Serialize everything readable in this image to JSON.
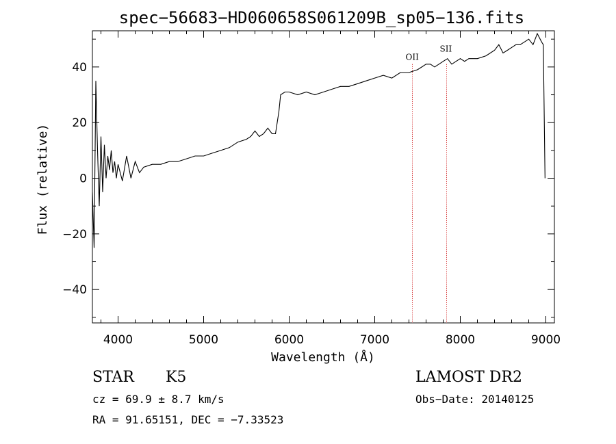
{
  "chart_data": {
    "type": "line",
    "title": "spec−56683−HD060658S061209B_sp05−136.fits",
    "xlabel": "Wavelength (Å)",
    "ylabel": "Flux (relative)",
    "xlim": [
      3700,
      9100
    ],
    "ylim": [
      -52,
      53
    ],
    "xticks": [
      4000,
      5000,
      6000,
      7000,
      8000,
      9000
    ],
    "yticks": [
      -40,
      -20,
      0,
      20,
      40
    ],
    "xtick_labels": [
      "4000",
      "5000",
      "6000",
      "7000",
      "8000",
      "9000"
    ],
    "ytick_labels": [
      "−40",
      "−20",
      "0",
      "20",
      "40"
    ],
    "series": [
      {
        "x": [
          3700,
          3720,
          3740,
          3760,
          3780,
          3800,
          3820,
          3840,
          3860,
          3880,
          3900,
          3920,
          3940,
          3960,
          3980,
          4000,
          4050,
          4100,
          4150,
          4200,
          4250,
          4300,
          4400,
          4500,
          4600,
          4700,
          4800,
          4900,
          5000,
          5100,
          5200,
          5300,
          5400,
          5500,
          5550,
          5600,
          5650,
          5700,
          5750,
          5800,
          5840,
          5860,
          5880,
          5900,
          5950,
          6000,
          6100,
          6200,
          6300,
          6400,
          6500,
          6600,
          6700,
          6800,
          6900,
          7000,
          7100,
          7200,
          7300,
          7400,
          7500,
          7550,
          7600,
          7650,
          7700,
          7750,
          7800,
          7850,
          7900,
          7950,
          8000,
          8050,
          8100,
          8200,
          8300,
          8350,
          8400,
          8450,
          8500,
          8550,
          8600,
          8650,
          8700,
          8750,
          8800,
          8850,
          8900,
          8950,
          8970,
          8990
        ],
        "y": [
          -5,
          -25,
          35,
          10,
          -10,
          15,
          -5,
          12,
          0,
          8,
          3,
          10,
          2,
          6,
          0,
          5,
          -1,
          8,
          0,
          6,
          2,
          4,
          5,
          5,
          6,
          6,
          7,
          8,
          8,
          9,
          10,
          11,
          13,
          14,
          15,
          17,
          15,
          16,
          18,
          16,
          16,
          20,
          24,
          30,
          31,
          31,
          30,
          31,
          30,
          31,
          32,
          33,
          33,
          34,
          35,
          36,
          37,
          36,
          38,
          38,
          39,
          40,
          41,
          41,
          40,
          41,
          42,
          43,
          41,
          42,
          43,
          42,
          43,
          43,
          44,
          45,
          46,
          48,
          45,
          46,
          47,
          48,
          48,
          49,
          50,
          48,
          52,
          49,
          48,
          0
        ]
      }
    ],
    "annotations": [
      {
        "label": "OII",
        "x": 7440
      },
      {
        "label": "SII",
        "x": 7840
      }
    ],
    "grid": false,
    "line_color": "#000000",
    "marker_color": "#cc0000"
  },
  "info": {
    "object_class": "STAR",
    "subclass": "K5",
    "redshift": "cz = 69.9 ± 8.7 km/s",
    "coords": "RA =  91.65151, DEC =  −7.33523",
    "survey": "LAMOST DR2",
    "obs_date": "Obs−Date: 20140125"
  }
}
